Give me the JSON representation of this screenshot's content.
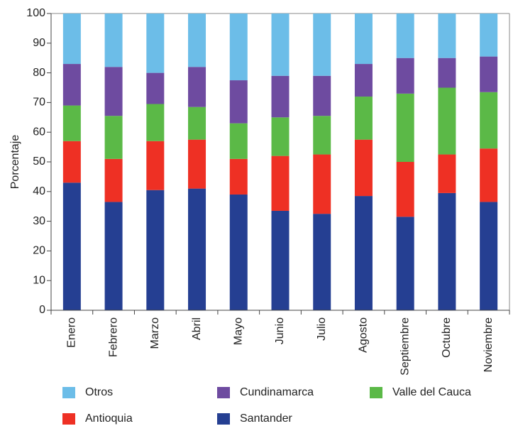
{
  "chart_data": {
    "type": "stacked_bar",
    "y_label": "Porcentaje",
    "categories": [
      "Enero",
      "Febrero",
      "Marzo",
      "Abril",
      "Mayo",
      "Junio",
      "Julio",
      "Agosto",
      "Septiembre",
      "Octubre",
      "Noviembre"
    ],
    "series": [
      {
        "name": "Otros",
        "color": "#6cbde8",
        "values": [
          17,
          18,
          20,
          18,
          22.5,
          21,
          21,
          17,
          15,
          15,
          14.5
        ]
      },
      {
        "name": "Cundinamarca",
        "color": "#6e4ba0",
        "values": [
          14,
          16.5,
          10.5,
          13.5,
          14.5,
          14,
          13.5,
          11,
          12,
          10,
          12
        ]
      },
      {
        "name": "Valle del Cauca",
        "color": "#5bb947",
        "values": [
          12,
          14.5,
          12.5,
          11,
          12,
          13,
          13,
          14.5,
          23,
          22.5,
          19
        ]
      },
      {
        "name": "Antioquia",
        "color": "#ee3024",
        "values": [
          14,
          14.5,
          16.5,
          16.5,
          12,
          18.5,
          20,
          19,
          18.5,
          13,
          18
        ]
      },
      {
        "name": "Santander",
        "color": "#253f92",
        "values": [
          43,
          36.5,
          40.5,
          41,
          39,
          33.5,
          32.5,
          38.5,
          31.5,
          39.5,
          36.5
        ]
      }
    ],
    "ylim": [
      0,
      100
    ],
    "yticks": [
      0,
      10,
      20,
      30,
      40,
      50,
      60,
      70,
      80,
      90,
      100
    ]
  }
}
